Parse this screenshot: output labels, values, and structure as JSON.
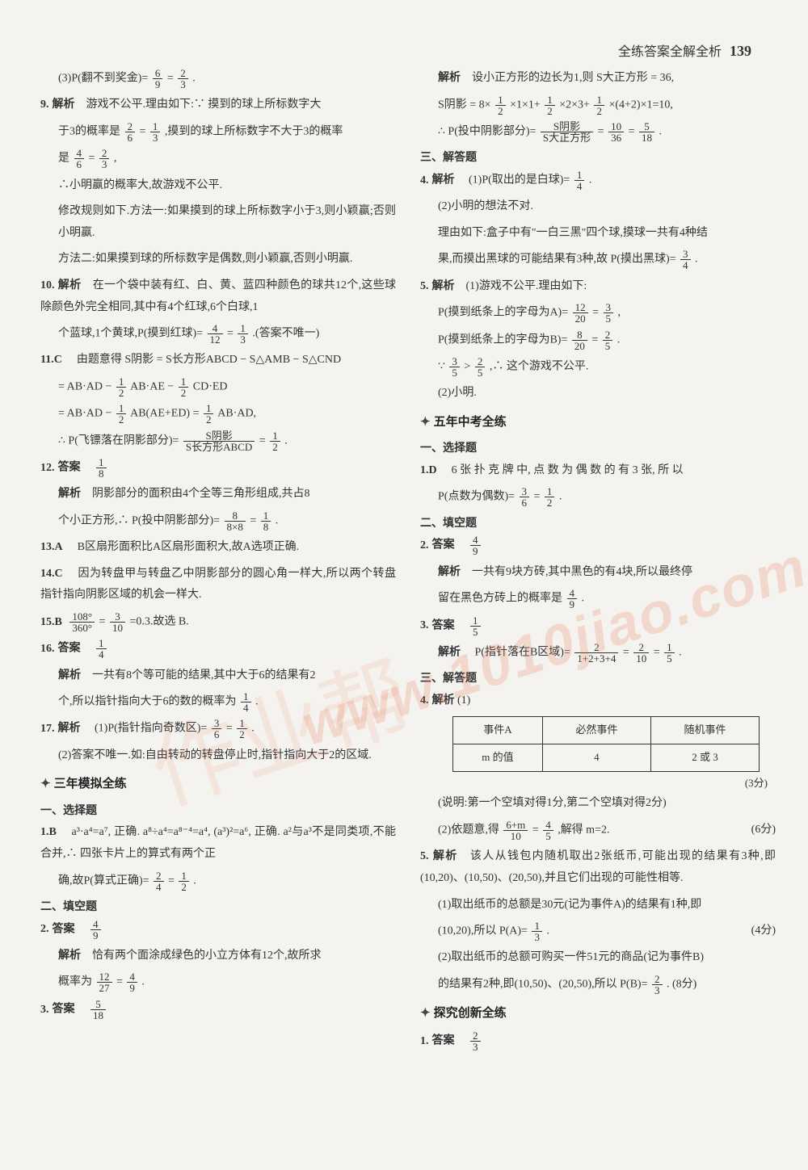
{
  "header": {
    "title": "全练答案全解全析",
    "page_number": "139"
  },
  "watermark": {
    "text1": "www.1010jiao.com",
    "text2": "作业帮"
  },
  "left": {
    "q8_3": {
      "prefix": "(3)P(翻不到奖金)=",
      "fr1n": "6",
      "fr1d": "9",
      "eq": "=",
      "fr2n": "2",
      "fr2d": "3",
      "end": "."
    },
    "q9": {
      "num": "9.",
      "icon": "📖",
      "tag": "解析",
      "a": "　游戏不公平.理由如下:∵ 摸到的球上所标数字大",
      "b": "于3的概率是",
      "fr1n": "2",
      "fr1d": "6",
      "c": "=",
      "fr2n": "1",
      "fr2d": "3",
      "d": ",摸到的球上所标数字不大于3的概率",
      "e": "是",
      "fr3n": "4",
      "fr3d": "6",
      "f": "=",
      "fr4n": "2",
      "fr4d": "3",
      "g": ",",
      "h": "∴小明赢的概率大,故游戏不公平.",
      "i": "修改规则如下.方法一:如果摸到的球上所标数字小于3,则小颖赢;否则小明赢.",
      "j": "方法二:如果摸到球的所标数字是偶数,则小颖赢,否则小明赢."
    },
    "q10": {
      "num": "10.",
      "icon": "📖",
      "tag": "解析",
      "a": "　在一个袋中装有红、白、黄、蓝四种颜色的球共12个,这些球除颜色外完全相同,其中有4个红球,6个白球,1",
      "b": "个蓝球,1个黄球,P(摸到红球)=",
      "fr1n": "4",
      "fr1d": "12",
      "c": "=",
      "fr2n": "1",
      "fr2d": "3",
      "d": ".(答案不唯一)"
    },
    "q11": {
      "num": "11.C",
      "a": "　由题意得 S阴影 = S长方形ABCD − S△AMB − S△CND",
      "b": "= AB·AD −",
      "fr1n": "1",
      "fr1d": "2",
      "c": "AB·AE −",
      "fr2n": "1",
      "fr2d": "2",
      "d": "CD·ED",
      "e": "= AB·AD −",
      "fr3n": "1",
      "fr3d": "2",
      "f": "AB(AE+ED) =",
      "fr4n": "1",
      "fr4d": "2",
      "g": "AB·AD,",
      "h": "∴ P(飞镖落在阴影部分)=",
      "fr5n": "S阴影",
      "fr5d": "S长方形ABCD",
      "i": "=",
      "fr6n": "1",
      "fr6d": "2",
      "j": "."
    },
    "q12": {
      "num": "12.",
      "icon": "📖",
      "tag_a": "答案",
      "ans_n": "1",
      "ans_d": "8",
      "tag_b": "解析",
      "b": "　阴影部分的面积由4个全等三角形组成,共占8",
      "c": "个小正方形,∴ P(投中阴影部分)=",
      "fr1n": "8",
      "fr1d": "8×8",
      "d": "=",
      "fr2n": "1",
      "fr2d": "8",
      "e": "."
    },
    "q13": {
      "num": "13.A",
      "a": "　B区扇形面积比A区扇形面积大,故A选项正确."
    },
    "q14": {
      "num": "14.C",
      "a": "　因为转盘甲与转盘乙中阴影部分的圆心角一样大,所以两个转盘指针指向阴影区域的机会一样大."
    },
    "q15": {
      "num": "15.B",
      "fr1n": "108°",
      "fr1d": "360°",
      "a": "=",
      "fr2n": "3",
      "fr2d": "10",
      "b": "=0.3.故选 B."
    },
    "q16": {
      "num": "16.",
      "icon": "📖",
      "tag_a": "答案",
      "ans_n": "1",
      "ans_d": "4",
      "tag_b": "解析",
      "b": "　一共有8个等可能的结果,其中大于6的结果有2",
      "c": "个,所以指针指向大于6的数的概率为",
      "fr1n": "1",
      "fr1d": "4",
      "d": "."
    },
    "q17": {
      "num": "17.",
      "icon": "📖",
      "tag": "解析",
      "a": "　(1)P(指针指向奇数区)=",
      "fr1n": "3",
      "fr1d": "6",
      "b": "=",
      "fr2n": "1",
      "fr2d": "2",
      "c": ".",
      "d": "(2)答案不唯一.如:自由转动的转盘停止时,指针指向大于2的区域."
    },
    "sec1": "三年模拟全练",
    "sub1": "一、选择题",
    "s1_q1": {
      "num": "1.B",
      "a": "　a³·a⁴=a⁷, 正确. a⁸÷a⁴=a⁸⁻⁴=a⁴, (a³)²=a⁶, 正确. a²与a³不是同类项,不能合并,∴ 四张卡片上的算式有两个正",
      "b": "确,故P(算式正确)=",
      "fr1n": "2",
      "fr1d": "4",
      "c": "=",
      "fr2n": "1",
      "fr2d": "2",
      "d": "."
    },
    "sub2": "二、填空题",
    "s1_q2": {
      "num": "2.",
      "icon": "📖",
      "tag_a": "答案",
      "ans_n": "4",
      "ans_d": "9",
      "tag_b": "解析",
      "b": "　恰有两个面涂成绿色的小立方体有12个,故所求",
      "c": "概率为",
      "fr1n": "12",
      "fr1d": "27",
      "d": "=",
      "fr2n": "4",
      "fr2d": "9",
      "e": "."
    },
    "s1_q3": {
      "num": "3.",
      "icon": "📖",
      "tag": "答案",
      "ans_n": "5",
      "ans_d": "18"
    }
  },
  "right": {
    "r_top": {
      "tag": "解析",
      "a": "　设小正方形的边长为1,则 S大正方形 = 36,",
      "b": "S阴影 = 8×",
      "f1n": "1",
      "f1d": "2",
      "c": "×1×1+",
      "f2n": "1",
      "f2d": "2",
      "d": "×2×3+",
      "f3n": "1",
      "f3d": "2",
      "e": "×(4+2)×1=10,",
      "f": "∴ P(投中阴影部分)=",
      "f4n": "S阴影",
      "f4d": "S大正方形",
      "g": "=",
      "f5n": "10",
      "f5d": "36",
      "h": "=",
      "f6n": "5",
      "f6d": "18",
      "i": "."
    },
    "sub3": "三、解答题",
    "r4": {
      "num": "4.",
      "icon": "📖",
      "tag": "解析",
      "a": "　(1)P(取出的是白球)=",
      "f1n": "1",
      "f1d": "4",
      "b": ".",
      "c": "(2)小明的想法不对.",
      "d": "理由如下:盒子中有\"一白三黑\"四个球,摸球一共有4种结",
      "e": "果,而摸出黑球的可能结果有3种,故 P(摸出黑球)=",
      "f2n": "3",
      "f2d": "4",
      "f": "."
    },
    "r5": {
      "num": "5.",
      "icon": "📖",
      "tag": "解析",
      "a": "　(1)游戏不公平.理由如下:",
      "b": "P(摸到纸条上的字母为A)=",
      "f1n": "12",
      "f1d": "20",
      "c": "=",
      "f2n": "3",
      "f2d": "5",
      "d": ",",
      "e": "P(摸到纸条上的字母为B)=",
      "f3n": "8",
      "f3d": "20",
      "f": "=",
      "f4n": "2",
      "f4d": "5",
      "g": ".",
      "h": "∵",
      "f5n": "3",
      "f5d": "5",
      "i": ">",
      "f6n": "2",
      "f6d": "5",
      "j": ",∴ 这个游戏不公平.",
      "k": "(2)小明."
    },
    "sec2": "五年中考全练",
    "sub_c1": "一、选择题",
    "c1": {
      "num": "1.D",
      "a": "　6 张 扑 克 牌 中, 点 数 为 偶 数 的 有 3 张, 所 以",
      "b": "P(点数为偶数)=",
      "f1n": "3",
      "f1d": "6",
      "c": "=",
      "f2n": "1",
      "f2d": "2",
      "d": "."
    },
    "sub_c2": "二、填空题",
    "c2": {
      "num": "2.",
      "icon": "📖",
      "tag_a": "答案",
      "ans_n": "4",
      "ans_d": "9",
      "tag_b": "解析",
      "b": "　一共有9块方砖,其中黑色的有4块,所以最终停",
      "c": "留在黑色方砖上的概率是",
      "f1n": "4",
      "f1d": "9",
      "d": "."
    },
    "c3": {
      "num": "3.",
      "icon": "📖",
      "tag_a": "答案",
      "ans_n": "1",
      "ans_d": "5",
      "tag_b": "解析",
      "b": "　P(指针落在B区域)=",
      "f1n": "2",
      "f1d": "1+2+3+4",
      "c": "=",
      "f2n": "2",
      "f2d": "10",
      "d": "=",
      "f3n": "1",
      "f3d": "5",
      "e": "."
    },
    "sub_c3": "三、解答题",
    "c4": {
      "num": "4.",
      "icon": "📖",
      "tag": "解析",
      "a": "(1)",
      "table": {
        "h1": "事件A",
        "h2": "必然事件",
        "h3": "随机事件",
        "r1": "m 的值",
        "r2": "4",
        "r3": "2 或 3"
      },
      "note1": "(3分)",
      "note2": "(说明:第一个空填对得1分,第二个空填对得2分)",
      "b": "(2)依题意,得",
      "f1n": "6+m",
      "f1d": "10",
      "c": "=",
      "f2n": "4",
      "f2d": "5",
      "d": ",解得 m=2.",
      "note3": "(6分)"
    },
    "c5": {
      "num": "5.",
      "icon": "📖",
      "tag": "解析",
      "a": "　该人从钱包内随机取出2张纸币,可能出现的结果有3种,即(10,20)、(10,50)、(20,50),并且它们出现的可能性相等.",
      "b": "(1)取出纸币的总额是30元(记为事件A)的结果有1种,即",
      "c": "(10,20),所以 P(A)=",
      "f1n": "1",
      "f1d": "3",
      "d": ".",
      "note1": "(4分)",
      "e": "(2)取出纸币的总额可购买一件51元的商品(记为事件B)",
      "f": "的结果有2种,即(10,50)、(20,50),所以 P(B)=",
      "f2n": "2",
      "f2d": "3",
      "g": ". (8分)"
    },
    "sec3": "探究创新全练",
    "t1": {
      "num": "1.",
      "icon": "📖",
      "tag": "答案",
      "ans_n": "2",
      "ans_d": "3"
    }
  }
}
